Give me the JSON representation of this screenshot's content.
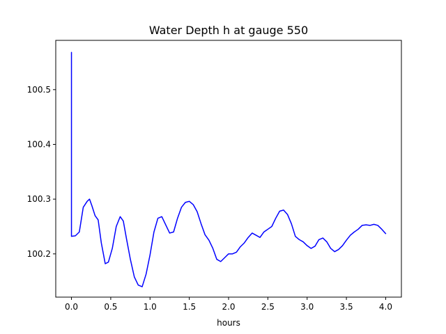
{
  "chart_data": {
    "type": "line",
    "title": "Water Depth h at gauge 550",
    "xlabel": "hours",
    "ylabel": "",
    "xlim": [
      -0.2,
      4.2
    ],
    "ylim": [
      100.121,
      100.59
    ],
    "xticks": [
      0.0,
      0.5,
      1.0,
      1.5,
      2.0,
      2.5,
      3.0,
      3.5,
      4.0
    ],
    "xtick_labels": [
      "0.0",
      "0.5",
      "1.0",
      "1.5",
      "2.0",
      "2.5",
      "3.0",
      "3.5",
      "4.0"
    ],
    "yticks": [
      100.2,
      100.3,
      100.4,
      100.5
    ],
    "ytick_labels": [
      "100.2",
      "100.3",
      "100.4",
      "100.5"
    ],
    "grid": false,
    "series": [
      {
        "color": "#0000ff",
        "x": [
          0.0,
          0.0,
          0.0,
          0.05,
          0.1,
          0.15,
          0.2,
          0.23,
          0.26,
          0.3,
          0.34,
          0.38,
          0.43,
          0.47,
          0.52,
          0.57,
          0.62,
          0.66,
          0.7,
          0.75,
          0.8,
          0.85,
          0.9,
          0.95,
          1.0,
          1.05,
          1.1,
          1.15,
          1.2,
          1.25,
          1.3,
          1.35,
          1.4,
          1.45,
          1.5,
          1.55,
          1.6,
          1.65,
          1.7,
          1.75,
          1.8,
          1.85,
          1.9,
          1.95,
          2.0,
          2.05,
          2.1,
          2.15,
          2.2,
          2.25,
          2.3,
          2.35,
          2.4,
          2.45,
          2.5,
          2.55,
          2.6,
          2.65,
          2.7,
          2.75,
          2.8,
          2.85,
          2.9,
          2.95,
          3.0,
          3.05,
          3.1,
          3.15,
          3.2,
          3.25,
          3.3,
          3.35,
          3.4,
          3.45,
          3.5,
          3.55,
          3.6,
          3.65,
          3.7,
          3.75,
          3.8,
          3.85,
          3.9,
          3.95,
          4.0
        ],
        "y": [
          100.568,
          100.232,
          100.232,
          100.233,
          100.24,
          100.285,
          100.296,
          100.3,
          100.288,
          100.27,
          100.262,
          100.22,
          100.182,
          100.185,
          100.21,
          100.25,
          100.268,
          100.26,
          100.228,
          100.19,
          100.158,
          100.143,
          100.14,
          100.163,
          100.198,
          100.24,
          100.265,
          100.268,
          100.253,
          100.238,
          100.24,
          100.265,
          100.285,
          100.294,
          100.296,
          100.29,
          100.277,
          100.255,
          100.235,
          100.225,
          100.21,
          100.19,
          100.186,
          100.193,
          100.2,
          100.2,
          100.203,
          100.213,
          100.22,
          100.23,
          100.238,
          100.234,
          100.23,
          100.24,
          100.245,
          100.25,
          100.265,
          100.278,
          100.28,
          100.272,
          100.255,
          100.232,
          100.226,
          100.222,
          100.215,
          100.21,
          100.214,
          100.226,
          100.229,
          100.222,
          100.21,
          100.204,
          100.208,
          100.215,
          100.225,
          100.234,
          100.24,
          100.245,
          100.252,
          100.253,
          100.252,
          100.254,
          100.252,
          100.245,
          100.237
        ]
      }
    ]
  }
}
